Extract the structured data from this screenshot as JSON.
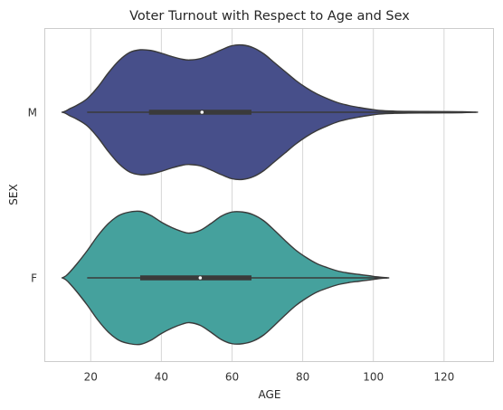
{
  "chart_data": {
    "type": "violin",
    "title": "Voter Turnout with Respect to Age and Sex",
    "xlabel": "AGE",
    "ylabel": "SEX",
    "xlim": [
      7,
      134
    ],
    "xticks": [
      20,
      40,
      60,
      80,
      100,
      120
    ],
    "grid": "vertical",
    "categories": [
      "M",
      "F"
    ],
    "series": [
      {
        "category": "M",
        "color": "#474f8a",
        "min": 19,
        "q1": 36.5,
        "median": 51.5,
        "q3": 65.5,
        "max": 129,
        "density": {
          "age": [
            12,
            13,
            14,
            16,
            19,
            22,
            25,
            28,
            31,
            34,
            37,
            40,
            43,
            46,
            48,
            51,
            54,
            57,
            60,
            63,
            66,
            69,
            72,
            75,
            78,
            81,
            84,
            87,
            90,
            93,
            96,
            99,
            102,
            106,
            110,
            115,
            120,
            125,
            129
          ],
          "width": [
            0,
            0.02,
            0.05,
            0.1,
            0.2,
            0.37,
            0.58,
            0.76,
            0.88,
            0.92,
            0.91,
            0.87,
            0.82,
            0.78,
            0.77,
            0.79,
            0.85,
            0.92,
            0.98,
            0.99,
            0.95,
            0.86,
            0.73,
            0.6,
            0.47,
            0.36,
            0.27,
            0.2,
            0.14,
            0.1,
            0.07,
            0.045,
            0.025,
            0.016,
            0.012,
            0.01,
            0.009,
            0.007,
            0
          ]
        }
      },
      {
        "category": "F",
        "color": "#45a19d",
        "min": 19,
        "q1": 34,
        "median": 51,
        "q3": 65.5,
        "max": 104,
        "density": {
          "age": [
            12,
            13,
            14,
            16,
            19,
            22,
            25,
            28,
            31,
            34,
            37,
            40,
            43,
            46,
            48,
            51,
            54,
            57,
            60,
            63,
            66,
            69,
            72,
            75,
            78,
            81,
            84,
            87,
            90,
            93,
            96,
            99,
            101,
            104
          ],
          "width": [
            0,
            0.03,
            0.08,
            0.2,
            0.4,
            0.62,
            0.8,
            0.92,
            0.97,
            0.98,
            0.92,
            0.82,
            0.74,
            0.68,
            0.66,
            0.7,
            0.8,
            0.91,
            0.97,
            0.97,
            0.93,
            0.84,
            0.7,
            0.55,
            0.41,
            0.3,
            0.21,
            0.15,
            0.1,
            0.07,
            0.05,
            0.03,
            0.015,
            0
          ]
        }
      }
    ]
  }
}
